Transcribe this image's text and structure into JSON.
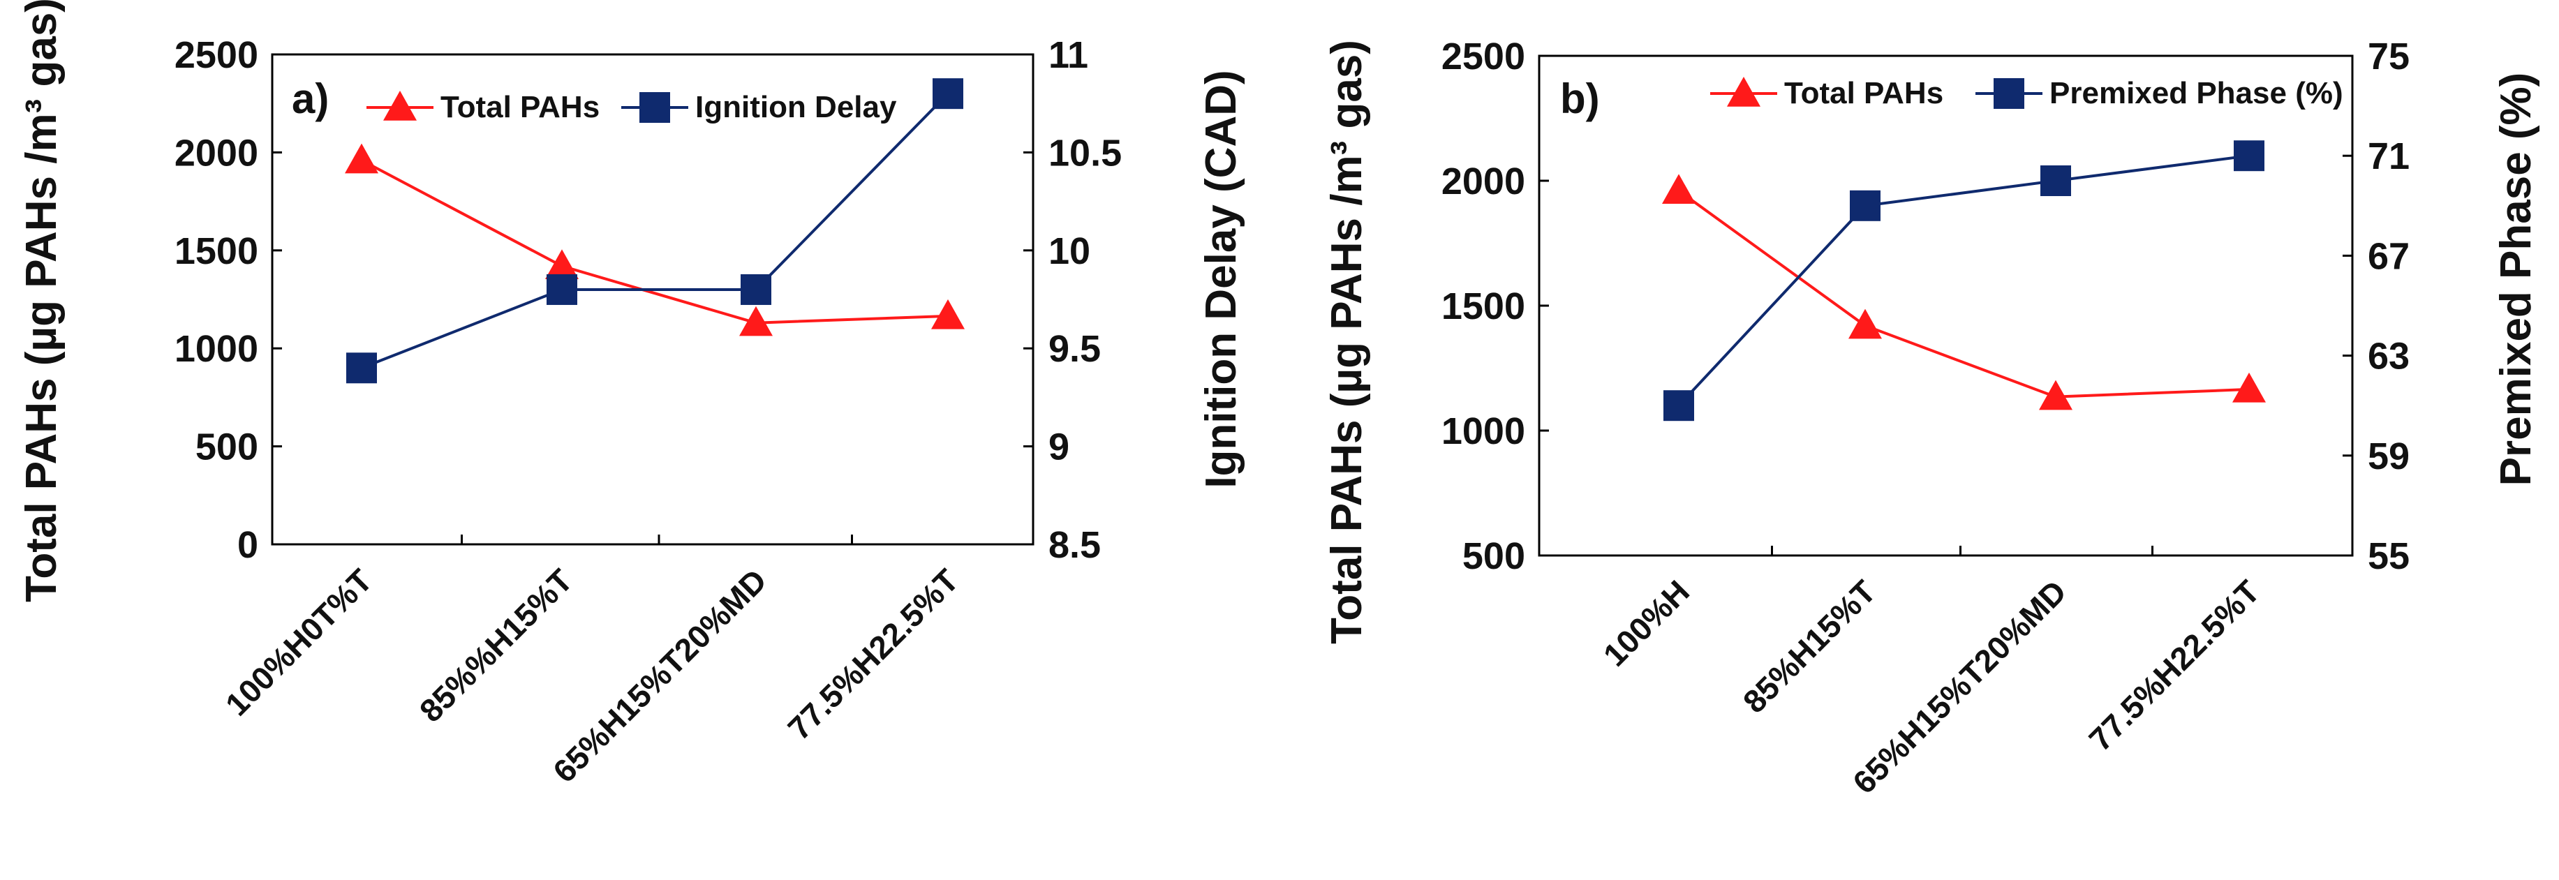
{
  "chart_data": [
    {
      "type": "line",
      "panel_label": "a)",
      "categories": [
        "100%H0T%T",
        "85%%H15%T",
        "65%H15%T20%MD",
        "77.5%H22.5%T"
      ],
      "series": [
        {
          "name": "Total PAHs",
          "axis": "left",
          "values": [
            1960,
            1420,
            1130,
            1165
          ],
          "color": "#ff1a1a",
          "marker": "triangle"
        },
        {
          "name": "Ignition Delay",
          "axis": "right",
          "values": [
            9.4,
            9.8,
            9.8,
            10.8
          ],
          "color": "#0f2a6e",
          "marker": "square"
        }
      ],
      "ylabel": "Total PAHs (µg PAHs /m³ gas)",
      "y2label": "Ignition Delay (CAD)",
      "ylim": [
        0,
        2500
      ],
      "yticks": [
        0,
        500,
        1000,
        1500,
        2000,
        2500
      ],
      "ytick_labels": [
        "0",
        "500",
        "1000",
        "1500",
        "2000",
        "2500"
      ],
      "y2lim": [
        8.5,
        11
      ],
      "y2ticks": [
        8.5,
        9,
        9.5,
        10,
        10.5,
        11
      ],
      "y2tick_labels": [
        "8.5",
        "9",
        "9.5",
        "10",
        "10.5",
        "11"
      ],
      "legend": "top"
    },
    {
      "type": "line",
      "panel_label": "b)",
      "categories": [
        "100%H",
        "85%H15%T",
        "65%H15%T20%MD",
        "77.5%H22.5%T"
      ],
      "series": [
        {
          "name": "Total PAHs",
          "axis": "left",
          "values": [
            1960,
            1420,
            1135,
            1165
          ],
          "color": "#ff1a1a",
          "marker": "triangle"
        },
        {
          "name": "Premixed Phase (%)",
          "axis": "right",
          "values": [
            61,
            69,
            70,
            71
          ],
          "color": "#0f2a6e",
          "marker": "square"
        }
      ],
      "ylabel": "Total PAHs (µg PAHs /m³ gas)",
      "y2label": "Premixed Phase (%)",
      "ylim": [
        500,
        2500
      ],
      "yticks": [
        500,
        1000,
        1500,
        2000,
        2500
      ],
      "ytick_labels": [
        "500",
        "1000",
        "1500",
        "2000",
        "2500"
      ],
      "y2lim": [
        55,
        75
      ],
      "y2ticks": [
        55,
        59,
        63,
        67,
        71,
        75
      ],
      "y2tick_labels": [
        "55",
        "59",
        "63",
        "67",
        "71",
        "75"
      ],
      "legend": "top"
    }
  ]
}
